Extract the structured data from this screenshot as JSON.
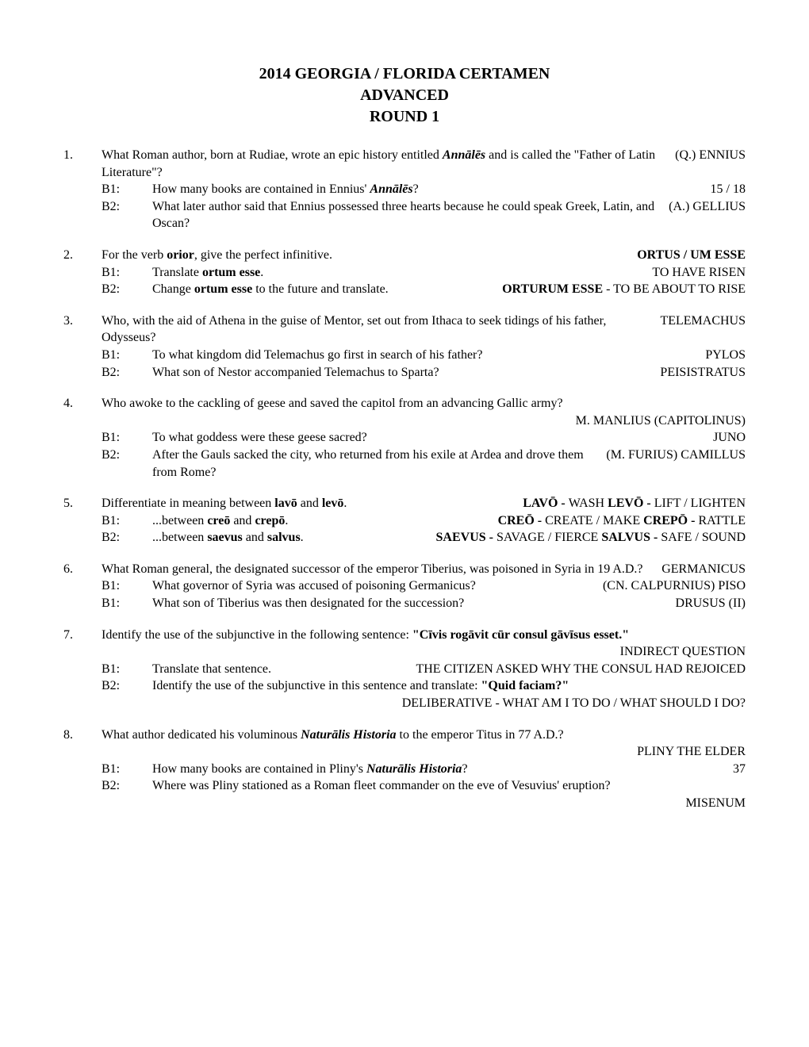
{
  "title": {
    "line1": "2014 GEORGIA / FLORIDA CERTAMEN",
    "line2": "ADVANCED",
    "line3": "ROUND 1"
  },
  "q1": {
    "num": "1.",
    "tossup_a": "What Roman author, born at Rudiae, wrote an epic history entitled ",
    "tossup_b": "Annālēs",
    "tossup_c": " and is called the \"Father of Latin Literature\"?",
    "tossup_ans": "(Q.) ENNIUS",
    "b1_label": "B1:",
    "b1_a": "How many books are contained in Ennius' ",
    "b1_b": "Annālēs",
    "b1_c": "?",
    "b1_ans": "15 / 18",
    "b2_label": "B2:",
    "b2": "What later author said that Ennius possessed three hearts because he could speak Greek, Latin, and Oscan?",
    "b2_ans": "(A.) GELLIUS"
  },
  "q2": {
    "num": "2.",
    "tossup_a": "For the verb ",
    "tossup_b": "orior",
    "tossup_c": ", give the perfect infinitive.",
    "tossup_ans": "ORTUS / UM ESSE",
    "b1_label": "B1:",
    "b1_a": "Translate ",
    "b1_b": "ortum esse",
    "b1_c": ".",
    "b1_ans": "TO HAVE RISEN",
    "b2_label": "B2:",
    "b2_a": "Change ",
    "b2_b": "ortum esse",
    "b2_c": " to the future and translate.",
    "b2_ans_b": "ORTURUM ESSE",
    "b2_ans_c": " - TO BE ABOUT TO RISE"
  },
  "q3": {
    "num": "3.",
    "tossup": "Who, with the aid of Athena in the guise of Mentor, set out from Ithaca to seek tidings of his father, Odysseus?",
    "tossup_ans": "TELEMACHUS",
    "b1_label": "B1:",
    "b1": "To what kingdom did Telemachus go first in search of his father?",
    "b1_ans": "PYLOS",
    "b2_label": "B2:",
    "b2": "What son of Nestor accompanied Telemachus to Sparta?",
    "b2_ans": "PEISISTRATUS"
  },
  "q4": {
    "num": "4.",
    "tossup": "Who awoke to the cackling of geese and saved the capitol from an advancing Gallic army?",
    "tossup_ans": "M. MANLIUS (CAPITOLINUS)",
    "b1_label": "B1:",
    "b1": "To what goddess were these geese sacred?",
    "b1_ans": "JUNO",
    "b2_label": "B2:",
    "b2": "After the Gauls sacked the city, who returned from his exile at Ardea and drove them from Rome?",
    "b2_ans": "(M. FURIUS) CAMILLUS"
  },
  "q5": {
    "num": "5.",
    "tossup_a": "Differentiate in meaning between ",
    "tossup_b": "lavō",
    "tossup_c": " and ",
    "tossup_d": "levō",
    "tossup_e": ".",
    "tossup_ans_a": "LAVŌ - ",
    "tossup_ans_b": "WASH   ",
    "tossup_ans_c": "LEVŌ - ",
    "tossup_ans_d": "LIFT / LIGHTEN",
    "b1_label": "B1:",
    "b1_a": "...between ",
    "b1_b": "creō",
    "b1_c": " and ",
    "b1_d": "crepō",
    "b1_e": ".",
    "b1_ans_a": "CREŌ - ",
    "b1_ans_b": "CREATE / MAKE    ",
    "b1_ans_c": "CREPŌ - ",
    "b1_ans_d": "RATTLE",
    "b2_label": "B2:",
    "b2_a": "...between ",
    "b2_b": "saevus",
    "b2_c": " and ",
    "b2_d": "salvus",
    "b2_e": ".",
    "b2_ans_a": "SAEVUS - ",
    "b2_ans_b": "SAVAGE / FIERCE    ",
    "b2_ans_c": "SALVUS - ",
    "b2_ans_d": "SAFE / SOUND"
  },
  "q6": {
    "num": "6.",
    "tossup": "What Roman general, the designated successor of the emperor Tiberius, was poisoned in Syria in 19 A.D.?",
    "tossup_ans": "GERMANICUS",
    "b1_label": "B1:",
    "b1": "What governor of Syria was accused of poisoning Germanicus?",
    "b1_ans": "(CN. CALPURNIUS) PISO",
    "b2_label": "B1:",
    "b2": "What son of Tiberius was then designated for the succession?",
    "b2_ans": "DRUSUS (II)"
  },
  "q7": {
    "num": "7.",
    "tossup_a": "Identify the use of the subjunctive in the following sentence: ",
    "tossup_b": "\"Cīvis rogāvit cūr consul gāvīsus esset.\"",
    "tossup_ans": "INDIRECT QUESTION",
    "b1_label": "B1:",
    "b1": "Translate that sentence.",
    "b1_ans": "THE CITIZEN ASKED WHY THE CONSUL HAD REJOICED",
    "b2_label": "B2:",
    "b2_a": "Identify the use of the subjunctive in this sentence and translate: ",
    "b2_b": "\"Quid faciam?\"",
    "b2_ans": "DELIBERATIVE - WHAT AM I TO DO / WHAT SHOULD I DO?"
  },
  "q8": {
    "num": "8.",
    "tossup_a": "What author dedicated his voluminous ",
    "tossup_b": "Naturālis Historia",
    "tossup_c": " to the emperor Titus in 77 A.D.?",
    "tossup_ans": "PLINY THE ELDER",
    "b1_label": "B1:",
    "b1_a": "How many books are contained in Pliny's ",
    "b1_b": "Naturālis Historia",
    "b1_c": "?",
    "b1_ans": "37",
    "b2_label": "B2:",
    "b2": "Where was Pliny stationed as a Roman fleet commander on the eve of Vesuvius' eruption?",
    "b2_ans": "MISENUM"
  }
}
